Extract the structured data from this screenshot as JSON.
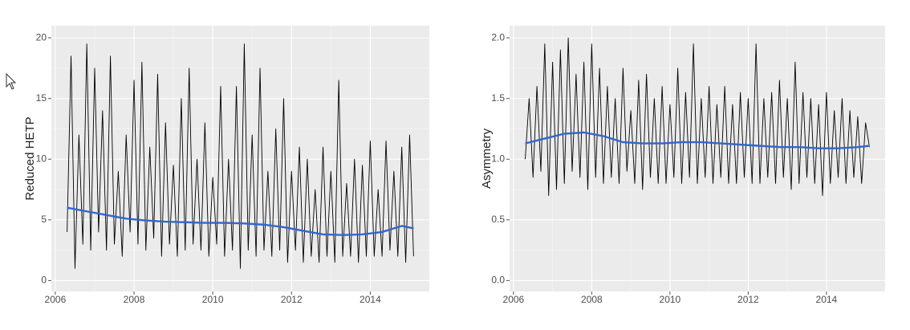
{
  "chart_data": [
    {
      "type": "line",
      "ylabel": "Reduced HETP",
      "xlim": [
        2005.9,
        2015.5
      ],
      "xticks": [
        2006,
        2008,
        2010,
        2012,
        2014
      ],
      "ylim": [
        -0.9,
        21
      ],
      "yticks": [
        0,
        5,
        10,
        15,
        20
      ],
      "grid": true,
      "series": [
        {
          "color": "#000000",
          "x": [
            2006.3,
            2006.4,
            2006.5,
            2006.6,
            2006.7,
            2006.8,
            2006.9,
            2007.0,
            2007.1,
            2007.2,
            2007.3,
            2007.4,
            2007.5,
            2007.6,
            2007.7,
            2007.8,
            2007.9,
            2008.0,
            2008.1,
            2008.2,
            2008.3,
            2008.4,
            2008.5,
            2008.6,
            2008.7,
            2008.8,
            2008.9,
            2009.0,
            2009.1,
            2009.2,
            2009.3,
            2009.4,
            2009.5,
            2009.6,
            2009.7,
            2009.8,
            2009.9,
            2010.0,
            2010.1,
            2010.2,
            2010.3,
            2010.4,
            2010.5,
            2010.6,
            2010.7,
            2010.8,
            2010.9,
            2011.0,
            2011.1,
            2011.2,
            2011.3,
            2011.4,
            2011.5,
            2011.6,
            2011.7,
            2011.8,
            2011.9,
            2012.0,
            2012.1,
            2012.2,
            2012.3,
            2012.4,
            2012.5,
            2012.6,
            2012.7,
            2012.8,
            2012.9,
            2013.0,
            2013.1,
            2013.2,
            2013.3,
            2013.4,
            2013.5,
            2013.6,
            2013.7,
            2013.8,
            2013.9,
            2014.0,
            2014.1,
            2014.2,
            2014.3,
            2014.4,
            2014.5,
            2014.6,
            2014.7,
            2014.8,
            2014.9,
            2015.0,
            2015.1
          ],
          "values": [
            4,
            18.5,
            1,
            12,
            3,
            19.5,
            2.5,
            17.5,
            4,
            14,
            2.5,
            18.5,
            3,
            9,
            2,
            12,
            4,
            16.5,
            3,
            18,
            2.5,
            11,
            3.5,
            17,
            2,
            13,
            3,
            9.5,
            2,
            15,
            2.5,
            17.5,
            3,
            10,
            2.5,
            13,
            2,
            8.5,
            3,
            16,
            2,
            10,
            2.5,
            16,
            1,
            19.5,
            2.5,
            12,
            2,
            17.5,
            2.5,
            9,
            2,
            12.5,
            2.5,
            15,
            1.5,
            9,
            2.5,
            11,
            1.5,
            10,
            2,
            7.5,
            1.5,
            11,
            2,
            9,
            1.5,
            16.5,
            2,
            8,
            2,
            10,
            1.5,
            9.5,
            2,
            11.5,
            2,
            7.5,
            2,
            11.5,
            2.5,
            9,
            2,
            11,
            1.5,
            12,
            2
          ]
        },
        {
          "color": "#3366cc",
          "x": [
            2006.3,
            2006.8,
            2007.3,
            2007.8,
            2008.3,
            2008.8,
            2009.3,
            2009.8,
            2010.3,
            2010.8,
            2011.3,
            2011.8,
            2012.3,
            2012.8,
            2013.3,
            2013.8,
            2014.3,
            2014.8,
            2015.1
          ],
          "values": [
            6.0,
            5.7,
            5.4,
            5.1,
            4.95,
            4.85,
            4.8,
            4.75,
            4.75,
            4.7,
            4.6,
            4.4,
            4.1,
            3.8,
            3.75,
            3.8,
            4.0,
            4.5,
            4.3
          ]
        }
      ]
    },
    {
      "type": "line",
      "ylabel": "Asymmetry",
      "xlim": [
        2005.9,
        2015.5
      ],
      "xticks": [
        2006,
        2008,
        2010,
        2012,
        2014
      ],
      "ylim": [
        -0.09,
        2.1
      ],
      "yticks": [
        {
          "value": 0,
          "label": "0.0"
        },
        0.5,
        {
          "value": 1,
          "label": "1.0"
        },
        1.5,
        {
          "value": 2,
          "label": "2.0"
        }
      ],
      "grid": true,
      "series": [
        {
          "color": "#000000",
          "x": [
            2006.3,
            2006.4,
            2006.5,
            2006.6,
            2006.7,
            2006.8,
            2006.9,
            2007.0,
            2007.1,
            2007.2,
            2007.3,
            2007.4,
            2007.5,
            2007.6,
            2007.7,
            2007.8,
            2007.9,
            2008.0,
            2008.1,
            2008.2,
            2008.3,
            2008.4,
            2008.5,
            2008.6,
            2008.7,
            2008.8,
            2008.9,
            2009.0,
            2009.1,
            2009.2,
            2009.3,
            2009.4,
            2009.5,
            2009.6,
            2009.7,
            2009.8,
            2009.9,
            2010.0,
            2010.1,
            2010.2,
            2010.3,
            2010.4,
            2010.5,
            2010.6,
            2010.7,
            2010.8,
            2010.9,
            2011.0,
            2011.1,
            2011.2,
            2011.3,
            2011.4,
            2011.5,
            2011.6,
            2011.7,
            2011.8,
            2011.9,
            2012.0,
            2012.1,
            2012.2,
            2012.3,
            2012.4,
            2012.5,
            2012.6,
            2012.7,
            2012.8,
            2012.9,
            2013.0,
            2013.1,
            2013.2,
            2013.3,
            2013.4,
            2013.5,
            2013.6,
            2013.7,
            2013.8,
            2013.9,
            2014.0,
            2014.1,
            2014.2,
            2014.3,
            2014.4,
            2014.5,
            2014.6,
            2014.7,
            2014.8,
            2014.9,
            2015.0,
            2015.1
          ],
          "values": [
            1.0,
            1.5,
            0.85,
            1.6,
            0.9,
            1.95,
            0.7,
            1.8,
            0.75,
            1.9,
            0.8,
            2.0,
            0.9,
            1.7,
            0.85,
            1.8,
            0.75,
            1.95,
            0.85,
            1.75,
            0.8,
            1.6,
            0.85,
            1.5,
            0.8,
            1.75,
            0.9,
            1.4,
            0.8,
            1.65,
            0.75,
            1.7,
            0.85,
            1.5,
            0.8,
            1.6,
            0.8,
            1.45,
            0.85,
            1.75,
            0.8,
            1.55,
            0.85,
            1.95,
            0.8,
            1.5,
            0.85,
            1.6,
            0.8,
            1.45,
            0.85,
            1.6,
            0.8,
            1.45,
            0.8,
            1.55,
            0.85,
            1.5,
            0.8,
            1.95,
            0.8,
            1.5,
            0.85,
            1.55,
            0.8,
            1.65,
            0.85,
            1.5,
            0.75,
            1.8,
            0.8,
            1.55,
            0.85,
            1.5,
            0.8,
            1.45,
            0.7,
            1.55,
            0.8,
            1.4,
            0.85,
            1.5,
            0.8,
            1.4,
            0.85,
            1.35,
            0.8,
            1.3,
            1.1
          ]
        },
        {
          "color": "#3366cc",
          "x": [
            2006.3,
            2006.8,
            2007.3,
            2007.8,
            2008.3,
            2008.8,
            2009.3,
            2009.8,
            2010.3,
            2010.8,
            2011.3,
            2011.8,
            2012.3,
            2012.8,
            2013.3,
            2013.8,
            2014.3,
            2014.8,
            2015.1
          ],
          "values": [
            1.13,
            1.17,
            1.21,
            1.22,
            1.19,
            1.14,
            1.13,
            1.13,
            1.14,
            1.14,
            1.13,
            1.12,
            1.11,
            1.1,
            1.1,
            1.09,
            1.09,
            1.1,
            1.11
          ]
        }
      ]
    }
  ]
}
